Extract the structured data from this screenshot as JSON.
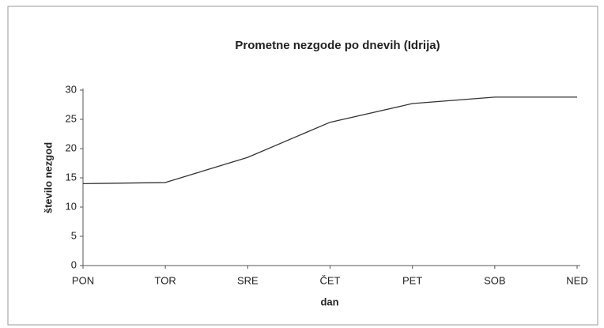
{
  "chart_data": {
    "type": "line",
    "title": "Prometne nezgode po dnevih (Idrija)",
    "categories": [
      "PON",
      "TOR",
      "SRE",
      "ČET",
      "PET",
      "SOB",
      "NED"
    ],
    "values": [
      14,
      14.2,
      18.5,
      24.5,
      27.7,
      28.8,
      28.8
    ],
    "color": "#333333",
    "xlabel": "dan",
    "ylabel": "število nezgod",
    "ylim": [
      0,
      30
    ],
    "yticks": [
      0,
      5,
      10,
      15,
      20,
      25,
      30
    ],
    "grid": false
  }
}
